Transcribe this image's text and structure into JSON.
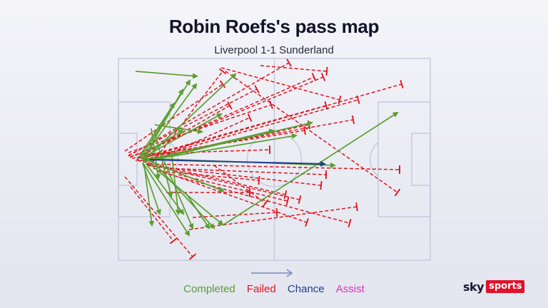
{
  "title": "Robin Roefs's pass map",
  "subtitle": "Liverpool 1-1 Sunderland",
  "legend": {
    "completed": "Completed",
    "failed": "Failed",
    "chance": "Chance",
    "assist": "Assist"
  },
  "colors": {
    "completed": "#5a9e2f",
    "failed": "#e3141c",
    "chance": "#1f3f8f",
    "assist": "#e030c8",
    "pitch_lines": "#c5cade"
  },
  "logo": {
    "sky": "sky",
    "sports": "sports"
  },
  "passes": {
    "completed": [
      [
        [
          190,
          100
        ],
        [
          276,
          107
        ]
      ],
      [
        [
          197,
          222
        ],
        [
          469,
          232
        ]
      ],
      [
        [
          200,
          222
        ],
        [
          275,
          118
        ]
      ],
      [
        [
          198,
          220
        ],
        [
          266,
          113
        ]
      ],
      [
        [
          202,
          224
        ],
        [
          330,
          104
        ]
      ],
      [
        [
          200,
          226
        ],
        [
          383,
          183
        ]
      ],
      [
        [
          202,
          227
        ],
        [
          437,
          172
        ]
      ],
      [
        [
          195,
          220
        ],
        [
          244,
          145
        ]
      ],
      [
        [
          202,
          230
        ],
        [
          213,
          316
        ]
      ],
      [
        [
          200,
          229
        ],
        [
          224,
          300
        ]
      ],
      [
        [
          205,
          230
        ],
        [
          257,
          300
        ]
      ],
      [
        [
          200,
          228
        ],
        [
          265,
          330
        ]
      ],
      [
        [
          210,
          222
        ],
        [
          300,
          320
        ]
      ],
      [
        [
          230,
          226
        ],
        [
          270,
          320
        ]
      ],
      [
        [
          205,
          224
        ],
        [
          313,
          268
        ]
      ],
      [
        [
          210,
          230
        ],
        [
          312,
          315
        ]
      ],
      [
        [
          212,
          180
        ],
        [
          222,
          250
        ]
      ],
      [
        [
          217,
          175
        ],
        [
          283,
          185
        ]
      ],
      [
        [
          217,
          185
        ],
        [
          240,
          275
        ]
      ],
      [
        [
          240,
          210
        ],
        [
          250,
          300
        ]
      ],
      [
        [
          198,
          222
        ],
        [
          310,
          160
        ]
      ],
      [
        [
          200,
          224
        ],
        [
          256,
          126
        ]
      ],
      [
        [
          198,
          218
        ],
        [
          256,
          183
        ]
      ],
      [
        [
          312,
          316
        ],
        [
          557,
          158
        ]
      ],
      [
        [
          260,
          270
        ],
        [
          293,
          320
        ]
      ],
      [
        [
          200,
          226
        ],
        [
          415,
          190
        ]
      ]
    ],
    "chance": [
      [
        [
          210,
          224
        ],
        [
          455,
          230
        ]
      ]
    ],
    "failed": [
      [
        [
          175,
          212
        ],
        [
          312,
          118
        ]
      ],
      [
        [
          180,
          218
        ],
        [
          360,
          125
        ]
      ],
      [
        [
          182,
          221
        ],
        [
          440,
          108
        ]
      ],
      [
        [
          180,
          214
        ],
        [
          380,
          147
        ]
      ],
      [
        [
          180,
          219
        ],
        [
          405,
          88
        ]
      ],
      [
        [
          183,
          220
        ],
        [
          453,
          108
        ]
      ],
      [
        [
          185,
          222
        ],
        [
          427,
          183
        ]
      ],
      [
        [
          190,
          225
        ],
        [
          563,
          118
        ]
      ],
      [
        [
          195,
          226
        ],
        [
          502,
          140
        ]
      ],
      [
        [
          192,
          222
        ],
        [
          495,
          168
        ]
      ],
      [
        [
          198,
          221
        ],
        [
          457,
          148
        ]
      ],
      [
        [
          200,
          218
        ],
        [
          322,
          148
        ]
      ],
      [
        [
          200,
          225
        ],
        [
          433,
          175
        ]
      ],
      [
        [
          205,
          230
        ],
        [
          350,
          165
        ]
      ],
      [
        [
          210,
          233
        ],
        [
          312,
          100
        ]
      ],
      [
        [
          193,
          225
        ],
        [
          400,
          273
        ]
      ],
      [
        [
          205,
          230
        ],
        [
          420,
          280
        ]
      ],
      [
        [
          207,
          232
        ],
        [
          450,
          260
        ]
      ],
      [
        [
          210,
          230
        ],
        [
          560,
          238
        ]
      ],
      [
        [
          215,
          236
        ],
        [
          430,
          312
        ]
      ],
      [
        [
          220,
          240
        ],
        [
          490,
          313
        ]
      ],
      [
        [
          225,
          240
        ],
        [
          363,
          253
        ]
      ],
      [
        [
          230,
          236
        ],
        [
          457,
          245
        ]
      ],
      [
        [
          250,
          245
        ],
        [
          403,
          282
        ]
      ],
      [
        [
          175,
          248
        ],
        [
          270,
          360
        ]
      ],
      [
        [
          183,
          262
        ],
        [
          243,
          338
        ]
      ],
      [
        [
          265,
          322
        ],
        [
          500,
          290
        ]
      ],
      [
        [
          270,
          305
        ],
        [
          388,
          298
        ]
      ],
      [
        [
          300,
          232
        ],
        [
          372,
          285
        ]
      ],
      [
        [
          233,
          270
        ],
        [
          350,
          270
        ]
      ],
      [
        [
          316,
          100
        ],
        [
          557,
          270
        ]
      ],
      [
        [
          365,
          92
        ],
        [
          458,
          100
        ]
      ],
      [
        [
          310,
          95
        ],
        [
          476,
          140
        ]
      ],
      [
        [
          195,
          216
        ],
        [
          378,
          210
        ]
      ]
    ]
  }
}
